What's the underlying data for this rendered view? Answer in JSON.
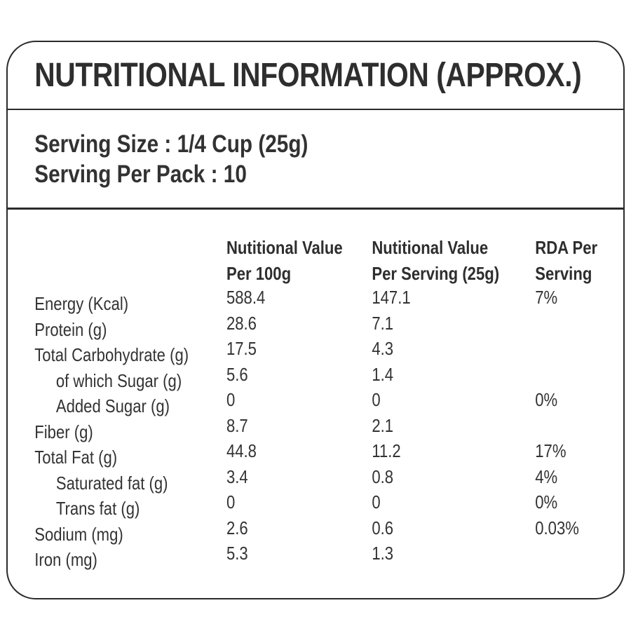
{
  "title": "NUTRITIONAL INFORMATION (APPROX.)",
  "serving": {
    "size_line": "Serving Size : 1/4 Cup (25g)",
    "pack_line": "Serving Per Pack : 10"
  },
  "table": {
    "columns": [
      {
        "line1": "Nutitional Value",
        "line2": "Per 100g"
      },
      {
        "line1": "Nutitional Value",
        "line2": "Per Serving (25g)"
      },
      {
        "line1": "RDA Per",
        "line2": "Serving"
      }
    ],
    "rows": [
      {
        "label": "Energy (Kcal)",
        "per_100g": "588.4",
        "per_serving": "147.1",
        "rda": "7%",
        "indent": false
      },
      {
        "label": "Protein (g)",
        "per_100g": "28.6",
        "per_serving": "7.1",
        "rda": "",
        "indent": false
      },
      {
        "label": "Total Carbohydrate (g)",
        "per_100g": "17.5",
        "per_serving": "4.3",
        "rda": "",
        "indent": false
      },
      {
        "label": "of which Sugar (g)",
        "per_100g": "5.6",
        "per_serving": "1.4",
        "rda": "",
        "indent": true
      },
      {
        "label": "Added Sugar (g)",
        "per_100g": "0",
        "per_serving": "0",
        "rda": "0%",
        "indent": true
      },
      {
        "label": "Fiber (g)",
        "per_100g": "8.7",
        "per_serving": "2.1",
        "rda": "",
        "indent": false
      },
      {
        "label": "Total Fat (g)",
        "per_100g": "44.8",
        "per_serving": "11.2",
        "rda": "17%",
        "indent": false
      },
      {
        "label": "Saturated fat (g)",
        "per_100g": "3.4",
        "per_serving": "0.8",
        "rda": "4%",
        "indent": true
      },
      {
        "label": "Trans fat (g)",
        "per_100g": "0",
        "per_serving": "0",
        "rda": "0%",
        "indent": true
      },
      {
        "label": "Sodium (mg)",
        "per_100g": "2.6",
        "per_serving": "0.6",
        "rda": "0.03%",
        "indent": false
      },
      {
        "label": "Iron (mg)",
        "per_100g": "5.3",
        "per_serving": "1.3",
        "rda": "",
        "indent": false
      }
    ]
  },
  "colors": {
    "text": "#333333",
    "border": "#2b2b2b",
    "background": "#ffffff"
  }
}
